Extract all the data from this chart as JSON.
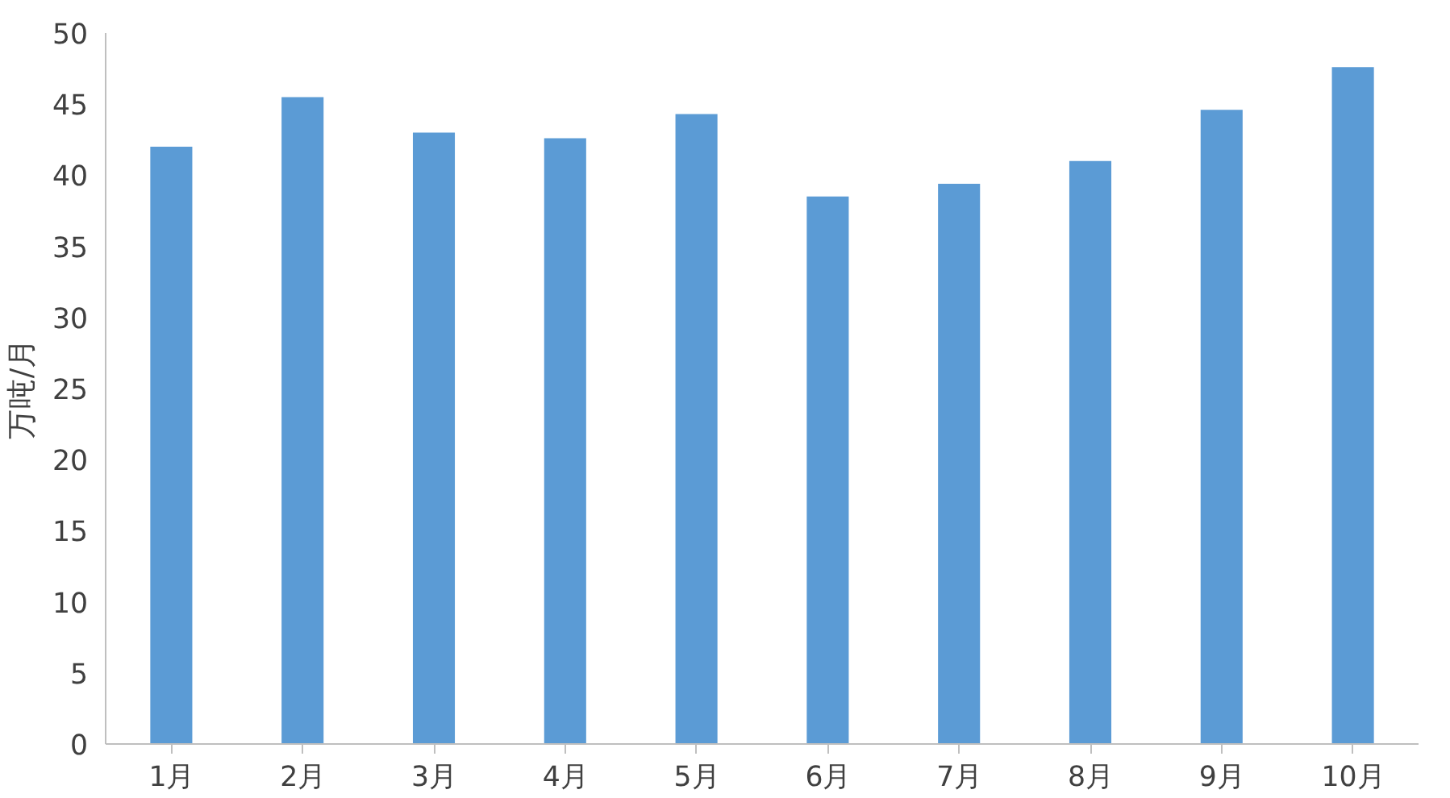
{
  "chart_data": {
    "type": "bar",
    "ylabel": "万吨/月",
    "categories": [
      "1月",
      "2月",
      "3月",
      "4月",
      "5月",
      "6月",
      "7月",
      "8月",
      "9月",
      "10月"
    ],
    "values": [
      42.0,
      45.5,
      43.0,
      42.6,
      44.3,
      38.5,
      39.4,
      41.0,
      44.6,
      47.6
    ],
    "color": "#5b9bd5",
    "ylim": [
      0,
      50
    ],
    "yticks": [
      0,
      5,
      10,
      15,
      20,
      25,
      30,
      35,
      40,
      45,
      50
    ],
    "grid": false
  }
}
